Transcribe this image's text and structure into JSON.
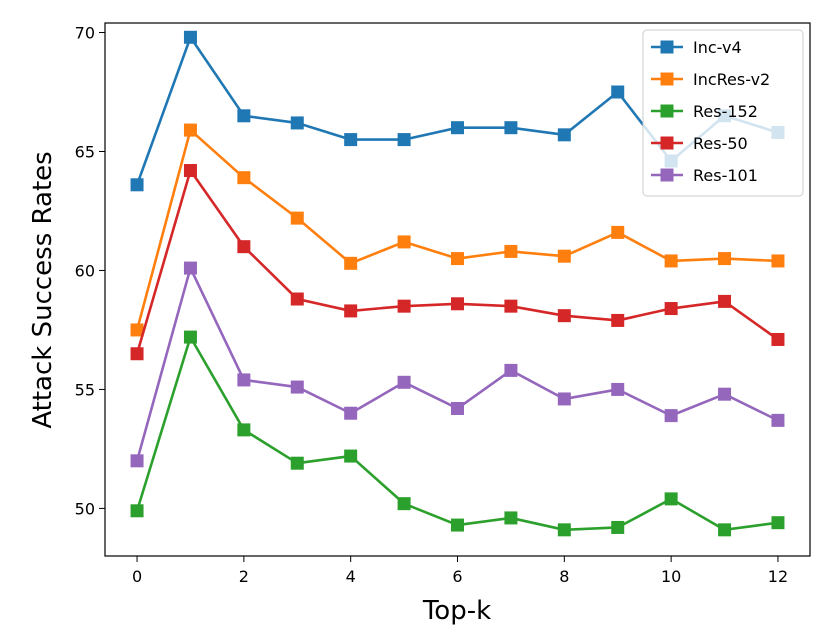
{
  "chart_data": {
    "type": "line",
    "title": "",
    "xlabel": "Top-k",
    "ylabel": "Attack Success Rates",
    "x": [
      0,
      1,
      2,
      3,
      4,
      5,
      6,
      7,
      8,
      9,
      10,
      11,
      12
    ],
    "xticks": [
      0,
      2,
      4,
      6,
      8,
      10,
      12
    ],
    "yticks": [
      50,
      55,
      60,
      65,
      70
    ],
    "xlim": [
      -0.6,
      12.6
    ],
    "ylim": [
      48.0,
      70.4
    ],
    "grid": false,
    "legend_position": "top-right",
    "series": [
      {
        "name": "Inc-v4",
        "color": "#1f77b4",
        "values": [
          63.6,
          69.8,
          66.5,
          66.2,
          65.5,
          65.5,
          66.0,
          66.0,
          65.7,
          67.5,
          64.6,
          66.5,
          65.8
        ]
      },
      {
        "name": "IncRes-v2",
        "color": "#ff7f0e",
        "values": [
          57.5,
          65.9,
          63.9,
          62.2,
          60.3,
          61.2,
          60.5,
          60.8,
          60.6,
          61.6,
          60.4,
          60.5,
          60.4
        ]
      },
      {
        "name": "Res-152",
        "color": "#2ca02c",
        "values": [
          49.9,
          57.2,
          53.3,
          51.9,
          52.2,
          50.2,
          49.3,
          49.6,
          49.1,
          49.2,
          50.4,
          49.1,
          49.4
        ]
      },
      {
        "name": "Res-50",
        "color": "#d62728",
        "values": [
          56.5,
          64.2,
          61.0,
          58.8,
          58.3,
          58.5,
          58.6,
          58.5,
          58.1,
          57.9,
          58.4,
          58.7,
          57.1
        ]
      },
      {
        "name": "Res-101",
        "color": "#9467bd",
        "values": [
          52.0,
          60.1,
          55.4,
          55.1,
          54.0,
          55.3,
          54.2,
          55.8,
          54.6,
          55.0,
          53.9,
          54.8,
          53.7
        ]
      }
    ]
  }
}
